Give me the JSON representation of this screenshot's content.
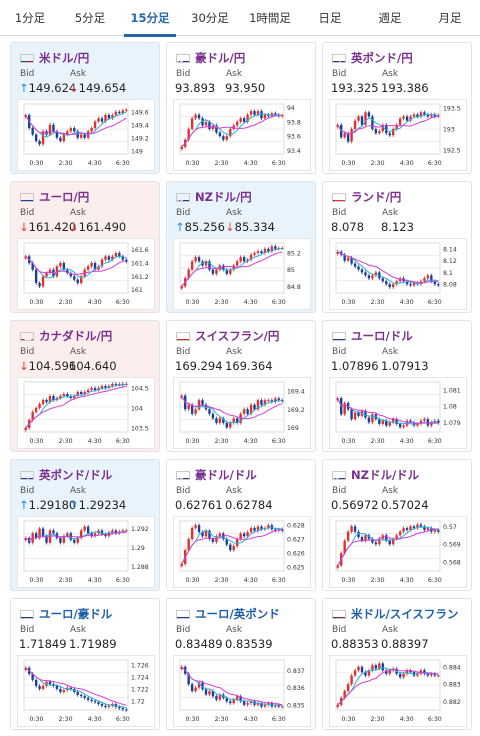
{
  "tabs": [
    {
      "label": "1分足",
      "active": false
    },
    {
      "label": "5分足",
      "active": false
    },
    {
      "label": "15分足",
      "active": true
    },
    {
      "label": "30分足",
      "active": false
    },
    {
      "label": "1時間足",
      "active": false
    },
    {
      "label": "日足",
      "active": false
    },
    {
      "label": "週足",
      "active": false
    },
    {
      "label": "月足",
      "active": false
    }
  ],
  "labels": {
    "bid": "Bid",
    "ask": "Ask"
  },
  "colors": {
    "up_candle": "#e0312d",
    "down_candle": "#1a3e9a",
    "ma_short": "#2bb0d8",
    "ma_long": "#d23fd6",
    "up_arrow": "#1f8fe0",
    "down_arrow": "#e0423c"
  },
  "cards": [
    {
      "pair": "米ドル/円",
      "flag": "us",
      "trend": "up",
      "bid": "149.624",
      "ask": "149.654",
      "bid_dir": "up",
      "ask_dir": "down",
      "chart_data": {
        "type": "candlestick",
        "x_ticks": [
          "0:30",
          "2:30",
          "4:30",
          "6:30"
        ],
        "y_ticks": [
          "149.6",
          "149.4",
          "149.2",
          "149"
        ],
        "ylim": [
          148.95,
          149.72
        ],
        "closes": [
          149.55,
          149.35,
          149.25,
          149.15,
          149.1,
          149.3,
          149.25,
          149.4,
          149.3,
          149.2,
          149.15,
          149.25,
          149.3,
          149.35,
          149.3,
          149.2,
          149.25,
          149.2,
          149.3,
          149.35,
          149.45,
          149.5,
          149.45,
          149.55,
          149.5,
          149.55,
          149.6,
          149.58,
          149.62,
          149.63
        ]
      }
    },
    {
      "pair": "豪ドル/円",
      "flag": "au",
      "trend": "none",
      "bid": "93.893",
      "ask": "93.950",
      "bid_dir": "none",
      "ask_dir": "none",
      "chart_data": {
        "type": "candlestick",
        "x_ticks": [
          "0:30",
          "2:30",
          "4:30",
          "6:30"
        ],
        "y_ticks": [
          "94",
          "93.8",
          "93.6",
          "93.4"
        ],
        "ylim": [
          93.35,
          94.05
        ],
        "closes": [
          93.45,
          93.55,
          93.7,
          93.85,
          93.9,
          93.85,
          93.75,
          93.8,
          93.7,
          93.75,
          93.65,
          93.6,
          93.55,
          93.6,
          93.7,
          93.75,
          93.8,
          93.85,
          93.8,
          93.9,
          93.95,
          93.9,
          93.95,
          93.85,
          93.9,
          93.88,
          93.92,
          93.9,
          93.88,
          93.89
        ]
      }
    },
    {
      "pair": "英ポンド/円",
      "flag": "gb",
      "trend": "none",
      "bid": "193.325",
      "ask": "193.386",
      "bid_dir": "none",
      "ask_dir": "none",
      "chart_data": {
        "type": "candlestick",
        "x_ticks": [
          "0:30",
          "2:30",
          "4:30",
          "6:30"
        ],
        "y_ticks": [
          "193.5",
          "193",
          "192.5"
        ],
        "ylim": [
          192.4,
          193.6
        ],
        "closes": [
          193.1,
          192.8,
          192.9,
          192.7,
          193.0,
          193.2,
          193.3,
          193.1,
          193.4,
          193.3,
          193.0,
          192.9,
          192.95,
          193.1,
          192.9,
          192.85,
          193.0,
          193.1,
          193.25,
          193.3,
          193.2,
          193.3,
          193.35,
          193.3,
          193.4,
          193.35,
          193.3,
          193.35,
          193.3,
          193.33
        ]
      }
    },
    {
      "pair": "ユーロ/円",
      "flag": "eu",
      "trend": "down",
      "bid": "161.420",
      "ask": "161.490",
      "bid_dir": "down",
      "ask_dir": "down",
      "chart_data": {
        "type": "candlestick",
        "x_ticks": [
          "0:30",
          "2:30",
          "4:30",
          "6:30"
        ],
        "y_ticks": [
          "161.6",
          "161.4",
          "161.2",
          "161"
        ],
        "ylim": [
          160.95,
          161.7
        ],
        "closes": [
          161.5,
          161.4,
          161.3,
          161.1,
          161.05,
          161.2,
          161.25,
          161.3,
          161.2,
          161.35,
          161.4,
          161.3,
          161.25,
          161.2,
          161.15,
          161.1,
          161.2,
          161.3,
          161.35,
          161.4,
          161.3,
          161.35,
          161.45,
          161.5,
          161.45,
          161.5,
          161.55,
          161.5,
          161.45,
          161.42
        ]
      }
    },
    {
      "pair": "NZドル/円",
      "flag": "nz",
      "trend": "up",
      "bid": "85.256",
      "ask": "85.334",
      "bid_dir": "up",
      "ask_dir": "down",
      "chart_data": {
        "type": "candlestick",
        "x_ticks": [
          "0:30",
          "2:30",
          "4:30",
          "6:30"
        ],
        "y_ticks": [
          "85.2",
          "85",
          "84.8"
        ],
        "ylim": [
          84.72,
          85.32
        ],
        "closes": [
          84.8,
          84.9,
          85.0,
          85.1,
          85.15,
          85.1,
          85.05,
          85.1,
          85.0,
          84.95,
          85.0,
          85.05,
          85.0,
          84.95,
          85.0,
          85.05,
          85.1,
          85.15,
          85.1,
          85.12,
          85.18,
          85.2,
          85.22,
          85.2,
          85.25,
          85.22,
          85.28,
          85.25,
          85.26,
          85.26
        ]
      }
    },
    {
      "pair": "ランド/円",
      "flag": "za",
      "trend": "none",
      "bid": "8.078",
      "ask": "8.123",
      "bid_dir": "none",
      "ask_dir": "none",
      "chart_data": {
        "type": "candlestick",
        "x_ticks": [
          "0:30",
          "2:30",
          "4:30",
          "6:30"
        ],
        "y_ticks": [
          "8.14",
          "8.12",
          "8.1",
          "8.08"
        ],
        "ylim": [
          8.065,
          8.15
        ],
        "closes": [
          8.135,
          8.13,
          8.12,
          8.125,
          8.115,
          8.11,
          8.105,
          8.1,
          8.095,
          8.09,
          8.095,
          8.1,
          8.09,
          8.085,
          8.08,
          8.075,
          8.08,
          8.085,
          8.09,
          8.085,
          8.08,
          8.078,
          8.082,
          8.08,
          8.085,
          8.09,
          8.095,
          8.085,
          8.08,
          8.078
        ]
      }
    },
    {
      "pair": "カナダドル/円",
      "flag": "ca",
      "trend": "down",
      "bid": "104.596",
      "ask": "104.640",
      "bid_dir": "down",
      "ask_dir": "none",
      "chart_data": {
        "type": "candlestick",
        "x_ticks": [
          "0:30",
          "2:30",
          "4:30",
          "6:30"
        ],
        "y_ticks": [
          "104.5",
          "104",
          "103.5"
        ],
        "ylim": [
          103.4,
          104.65
        ],
        "closes": [
          103.5,
          103.7,
          103.9,
          104.0,
          104.1,
          104.2,
          104.15,
          104.3,
          104.2,
          104.25,
          104.3,
          104.35,
          104.3,
          104.25,
          104.3,
          104.4,
          104.35,
          104.4,
          104.45,
          104.5,
          104.45,
          104.5,
          104.55,
          104.5,
          104.55,
          104.6,
          104.58,
          104.6,
          104.58,
          104.6
        ]
      }
    },
    {
      "pair": "スイスフラン/円",
      "flag": "ch",
      "trend": "none",
      "bid": "169.294",
      "ask": "169.364",
      "bid_dir": "none",
      "ask_dir": "none",
      "chart_data": {
        "type": "candlestick",
        "x_ticks": [
          "0:30",
          "2:30",
          "4:30",
          "6:30"
        ],
        "y_ticks": [
          "169.4",
          "169.2",
          "169"
        ],
        "ylim": [
          168.95,
          169.5
        ],
        "closes": [
          169.35,
          169.2,
          169.25,
          169.15,
          169.2,
          169.3,
          169.25,
          169.2,
          169.15,
          169.1,
          169.05,
          169.1,
          169.05,
          169.0,
          169.05,
          169.1,
          169.05,
          169.15,
          169.2,
          169.15,
          169.25,
          169.2,
          169.3,
          169.25,
          169.3,
          169.3,
          169.28,
          169.32,
          169.3,
          169.29
        ]
      }
    },
    {
      "pair": "ユーロ/ドル",
      "flag": "eu",
      "trend": "none",
      "bid": "1.07896",
      "ask": "1.07913",
      "bid_dir": "none",
      "ask_dir": "none",
      "chart_data": {
        "type": "candlestick",
        "x_ticks": [
          "0:30",
          "2:30",
          "4:30",
          "6:30"
        ],
        "y_ticks": [
          "1.081",
          "1.08",
          "1.079"
        ],
        "ylim": [
          1.0784,
          1.0815
        ],
        "closes": [
          1.0805,
          1.0795,
          1.0802,
          1.0798,
          1.0792,
          1.0796,
          1.0794,
          1.0797,
          1.0793,
          1.079,
          1.0795,
          1.0792,
          1.0789,
          1.0791,
          1.0788,
          1.079,
          1.0792,
          1.0789,
          1.0787,
          1.0788,
          1.0791,
          1.079,
          1.0788,
          1.0789,
          1.0791,
          1.0792,
          1.0788,
          1.079,
          1.0791,
          1.07896
        ]
      }
    },
    {
      "pair": "英ポンド/ドル",
      "flag": "gb",
      "trend": "up",
      "bid": "1.29180",
      "ask": "1.29234",
      "bid_dir": "up",
      "ask_dir": "up",
      "chart_data": {
        "type": "candlestick",
        "x_ticks": [
          "0:30",
          "2:30",
          "4:30",
          "6:30"
        ],
        "y_ticks": [
          "1.292",
          "1.29",
          "1.288"
        ],
        "ylim": [
          1.2875,
          1.2928
        ],
        "closes": [
          1.291,
          1.2905,
          1.2915,
          1.291,
          1.292,
          1.2912,
          1.2905,
          1.2918,
          1.2915,
          1.291,
          1.2905,
          1.2912,
          1.2915,
          1.2908,
          1.2905,
          1.291,
          1.2918,
          1.2922,
          1.2915,
          1.2912,
          1.2915,
          1.2918,
          1.2914,
          1.2912,
          1.2916,
          1.2918,
          1.2915,
          1.2917,
          1.2918,
          1.2918
        ]
      }
    },
    {
      "pair": "豪ドル/ドル",
      "flag": "au",
      "trend": "none",
      "bid": "0.62761",
      "ask": "0.62784",
      "bid_dir": "none",
      "ask_dir": "none",
      "chart_data": {
        "type": "candlestick",
        "x_ticks": [
          "0:30",
          "2:30",
          "4:30",
          "6:30"
        ],
        "y_ticks": [
          "0.628",
          "0.627",
          "0.626",
          "0.625"
        ],
        "ylim": [
          0.6247,
          0.6283
        ],
        "closes": [
          0.6252,
          0.6262,
          0.627,
          0.6278,
          0.628,
          0.6275,
          0.6272,
          0.6276,
          0.627,
          0.6268,
          0.6272,
          0.6274,
          0.627,
          0.6266,
          0.6262,
          0.6265,
          0.627,
          0.6274,
          0.6272,
          0.6275,
          0.6278,
          0.6276,
          0.6279,
          0.6277,
          0.6278,
          0.628,
          0.6277,
          0.6276,
          0.6277,
          0.6276
        ]
      }
    },
    {
      "pair": "NZドル/ドル",
      "flag": "nz",
      "trend": "none",
      "bid": "0.56972",
      "ask": "0.57024",
      "bid_dir": "none",
      "ask_dir": "none",
      "chart_data": {
        "type": "candlestick",
        "x_ticks": [
          "0:30",
          "2:30",
          "4:30",
          "6:30"
        ],
        "y_ticks": [
          "0.57",
          "0.569",
          "0.568"
        ],
        "ylim": [
          0.5675,
          0.5703
        ],
        "closes": [
          0.5678,
          0.5685,
          0.5692,
          0.5697,
          0.57,
          0.5697,
          0.5694,
          0.5692,
          0.5695,
          0.5693,
          0.5691,
          0.569,
          0.5693,
          0.5695,
          0.5692,
          0.569,
          0.5693,
          0.5695,
          0.5697,
          0.5699,
          0.5698,
          0.57,
          0.5699,
          0.5701,
          0.57,
          0.5698,
          0.5699,
          0.5697,
          0.5698,
          0.5697
        ]
      }
    },
    {
      "pair": "ユーロ/豪ドル",
      "flag": "eu",
      "trend": "none",
      "bid": "1.71849",
      "ask": "1.71989",
      "bid_dir": "none",
      "ask_dir": "none",
      "blue": true,
      "chart_data": {
        "type": "candlestick",
        "x_ticks": [
          "0:30",
          "2:30",
          "4:30",
          "6:30"
        ],
        "y_ticks": [
          "1.726",
          "1.724",
          "1.722",
          "1.72"
        ],
        "ylim": [
          1.7185,
          1.7268
        ],
        "closes": [
          1.7255,
          1.7245,
          1.7235,
          1.7225,
          1.722,
          1.7225,
          1.7232,
          1.7228,
          1.7225,
          1.722,
          1.7215,
          1.7218,
          1.7222,
          1.722,
          1.7215,
          1.721,
          1.7208,
          1.7205,
          1.7202,
          1.72,
          1.7198,
          1.7195,
          1.7192,
          1.719,
          1.7192,
          1.7195,
          1.719,
          1.7188,
          1.7186,
          1.7185
        ]
      }
    },
    {
      "pair": "ユーロ/英ポンド",
      "flag": "eu",
      "trend": "none",
      "bid": "0.83489",
      "ask": "0.83539",
      "bid_dir": "none",
      "ask_dir": "none",
      "blue": true,
      "chart_data": {
        "type": "candlestick",
        "x_ticks": [
          "0:30",
          "2:30",
          "4:30",
          "6:30"
        ],
        "y_ticks": [
          "0.837",
          "0.836",
          "0.835"
        ],
        "ylim": [
          0.8347,
          0.8376
        ],
        "closes": [
          0.8372,
          0.8368,
          0.8362,
          0.8358,
          0.836,
          0.8363,
          0.8359,
          0.8356,
          0.8358,
          0.8355,
          0.8353,
          0.8356,
          0.8354,
          0.8352,
          0.8351,
          0.8353,
          0.8355,
          0.8352,
          0.835,
          0.8351,
          0.8352,
          0.835,
          0.8351,
          0.8349,
          0.835,
          0.8351,
          0.8349,
          0.835,
          0.8349,
          0.8349
        ]
      }
    },
    {
      "pair": "米ドル/スイスフラン",
      "flag": "us",
      "trend": "none",
      "bid": "0.88353",
      "ask": "0.88397",
      "bid_dir": "none",
      "ask_dir": "none",
      "blue": true,
      "chart_data": {
        "type": "candlestick",
        "x_ticks": [
          "0:30",
          "2:30",
          "4:30",
          "6:30"
        ],
        "y_ticks": [
          "0.884",
          "0.883",
          "0.882"
        ],
        "ylim": [
          0.8815,
          0.8844
        ],
        "closes": [
          0.8818,
          0.8822,
          0.8826,
          0.883,
          0.8835,
          0.8838,
          0.884,
          0.8837,
          0.8835,
          0.8838,
          0.8841,
          0.8839,
          0.8842,
          0.8838,
          0.8836,
          0.8838,
          0.8839,
          0.8836,
          0.8834,
          0.8836,
          0.8838,
          0.8837,
          0.8835,
          0.8836,
          0.8838,
          0.8836,
          0.8835,
          0.8836,
          0.8835,
          0.8835
        ]
      }
    }
  ]
}
